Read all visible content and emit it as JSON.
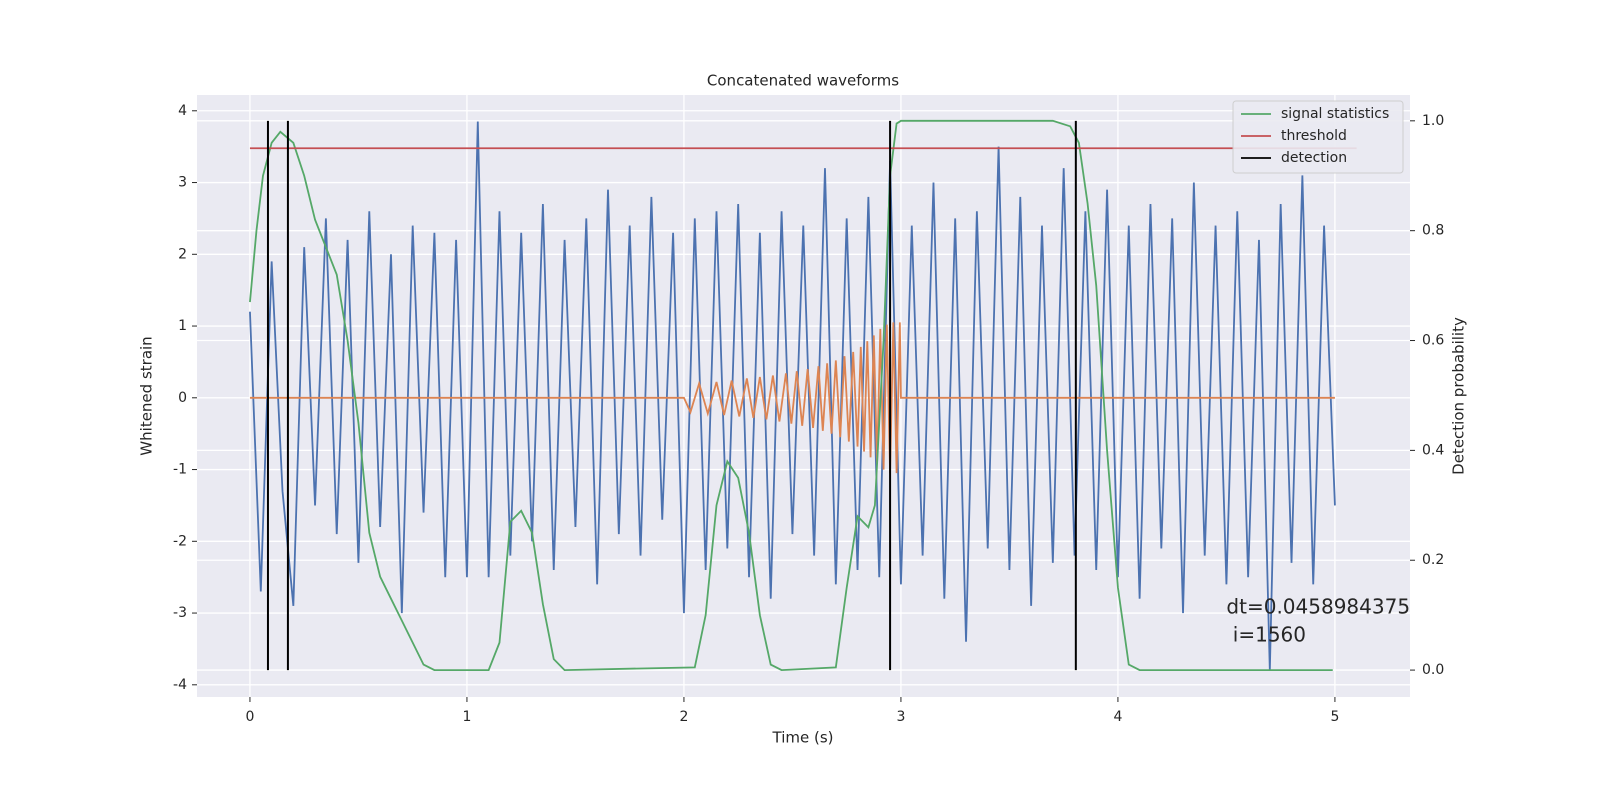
{
  "chart_data": {
    "type": "line",
    "title": "Concatenated waveforms",
    "xlabel": "Time (s)",
    "ylabel": "Whitened strain",
    "y2label": "Detection probability",
    "annotation": [
      "dt=0.0458984375",
      " i=1560"
    ],
    "xlim": [
      -0.244,
      5.346
    ],
    "ylim": [
      -4.17,
      4.22
    ],
    "y2lim": [
      -0.049,
      1.047
    ],
    "xticks": [
      0,
      1,
      2,
      3,
      4,
      5
    ],
    "yticks": [
      -4,
      -3,
      -2,
      -1,
      0,
      1,
      2,
      3,
      4
    ],
    "y2ticks": [
      {
        "value": 0,
        "label": "0.0"
      },
      0.2,
      0.4,
      0.6,
      0.8,
      {
        "value": 1,
        "label": "1.0"
      }
    ],
    "grid": true,
    "legend": "upper right",
    "series": [
      {
        "color": "#4c72b0",
        "axis": "y",
        "x": [
          0,
          0.05,
          0.1,
          0.15,
          0.2,
          0.25,
          0.3,
          0.35,
          0.4,
          0.45,
          0.5,
          0.55,
          0.6,
          0.65,
          0.7,
          0.75,
          0.8,
          0.85,
          0.9,
          0.95,
          1.0,
          1.05,
          1.1,
          1.15,
          1.2,
          1.25,
          1.3,
          1.35,
          1.4,
          1.45,
          1.5,
          1.55,
          1.6,
          1.65,
          1.7,
          1.75,
          1.8,
          1.85,
          1.9,
          1.95,
          2.0,
          2.05,
          2.1,
          2.15,
          2.2,
          2.25,
          2.3,
          2.35,
          2.4,
          2.45,
          2.5,
          2.55,
          2.6,
          2.65,
          2.7,
          2.75,
          2.8,
          2.85,
          2.9,
          2.95,
          3.0,
          3.05,
          3.1,
          3.15,
          3.2,
          3.25,
          3.3,
          3.35,
          3.4,
          3.45,
          3.5,
          3.55,
          3.6,
          3.65,
          3.7,
          3.75,
          3.8,
          3.85,
          3.9,
          3.95,
          4.0,
          4.05,
          4.1,
          4.15,
          4.2,
          4.25,
          4.3,
          4.35,
          4.4,
          4.45,
          4.5,
          4.55,
          4.6,
          4.65,
          4.7,
          4.75,
          4.8,
          4.85,
          4.9,
          4.95,
          5.0
        ],
        "values": [
          1.2,
          -2.7,
          1.9,
          -1.3,
          -2.9,
          2.1,
          -1.5,
          2.5,
          -1.9,
          2.2,
          -2.3,
          2.6,
          -1.8,
          2.0,
          -3.0,
          2.4,
          -1.6,
          2.3,
          -2.5,
          2.2,
          -2.5,
          3.85,
          -2.5,
          2.6,
          -2.2,
          2.3,
          -2.0,
          2.7,
          -2.4,
          2.2,
          -1.8,
          2.5,
          -2.6,
          2.9,
          -1.9,
          2.4,
          -2.2,
          2.8,
          -1.7,
          2.3,
          -3.0,
          2.5,
          -2.4,
          2.6,
          -2.1,
          2.7,
          -2.5,
          2.3,
          -2.8,
          2.6,
          -1.9,
          2.4,
          -2.2,
          3.2,
          -2.6,
          2.5,
          -2.4,
          2.8,
          -2.5,
          3.3,
          -2.6,
          2.4,
          -2.2,
          3.0,
          -2.8,
          2.5,
          -3.4,
          2.6,
          -2.1,
          3.5,
          -2.4,
          2.8,
          -2.9,
          2.4,
          -2.3,
          3.2,
          -2.2,
          2.6,
          -2.4,
          2.9,
          -2.5,
          2.4,
          -2.8,
          2.7,
          -2.1,
          2.5,
          -3.0,
          3.0,
          -2.2,
          2.4,
          -2.6,
          2.6,
          -2.5,
          2.2,
          -3.8,
          2.7,
          -2.3,
          3.1,
          -2.6,
          2.4,
          -1.5
        ]
      },
      {
        "color": "#dd8452",
        "axis": "y",
        "x": [
          0,
          2.0,
          2.03,
          2.07,
          2.11,
          2.15,
          2.185,
          2.22,
          2.255,
          2.29,
          2.32,
          2.35,
          2.38,
          2.41,
          2.44,
          2.47,
          2.495,
          2.52,
          2.545,
          2.57,
          2.595,
          2.62,
          2.64,
          2.66,
          2.68,
          2.7,
          2.72,
          2.74,
          2.76,
          2.78,
          2.8,
          2.815,
          2.83,
          2.845,
          2.86,
          2.875,
          2.89,
          2.905,
          2.92,
          2.935,
          2.95,
          2.965,
          2.98,
          2.995,
          3.0,
          5.0
        ],
        "values": [
          0,
          0,
          -0.2,
          0.2,
          -0.22,
          0.22,
          -0.24,
          0.24,
          -0.26,
          0.27,
          -0.28,
          0.29,
          -0.3,
          0.31,
          -0.33,
          0.34,
          -0.36,
          0.37,
          -0.39,
          0.4,
          -0.42,
          0.44,
          -0.46,
          0.48,
          -0.5,
          0.52,
          -0.55,
          0.58,
          -0.61,
          0.64,
          -0.68,
          0.71,
          -0.75,
          0.79,
          -0.83,
          0.87,
          -0.92,
          0.96,
          -1.0,
          1.02,
          -1.05,
          1.05,
          -1.05,
          1.05,
          0,
          0
        ]
      },
      {
        "name": "signal statistics",
        "color": "#55a868",
        "axis": "y2",
        "x": [
          0,
          0.03,
          0.06,
          0.1,
          0.14,
          0.2,
          0.25,
          0.3,
          0.35,
          0.4,
          0.45,
          0.5,
          0.55,
          0.6,
          0.65,
          0.7,
          0.75,
          0.8,
          0.85,
          1.1,
          1.15,
          1.2,
          1.25,
          1.3,
          1.35,
          1.4,
          1.45,
          2.05,
          2.1,
          2.15,
          2.2,
          2.25,
          2.3,
          2.35,
          2.4,
          2.45,
          2.7,
          2.75,
          2.8,
          2.85,
          2.88,
          2.92,
          2.95,
          2.98,
          3.0,
          3.7,
          3.78,
          3.82,
          3.86,
          3.9,
          3.95,
          4.0,
          4.05,
          4.1,
          4.99
        ],
        "values": [
          0.67,
          0.8,
          0.9,
          0.96,
          0.98,
          0.96,
          0.9,
          0.82,
          0.77,
          0.72,
          0.6,
          0.45,
          0.25,
          0.17,
          0.13,
          0.09,
          0.05,
          0.01,
          0,
          0,
          0.05,
          0.27,
          0.29,
          0.25,
          0.12,
          0.02,
          0,
          0.005,
          0.1,
          0.3,
          0.38,
          0.35,
          0.25,
          0.1,
          0.01,
          0,
          0.005,
          0.15,
          0.28,
          0.26,
          0.3,
          0.6,
          0.9,
          0.995,
          1.0,
          1.0,
          0.99,
          0.96,
          0.85,
          0.7,
          0.4,
          0.15,
          0.01,
          0,
          0
        ]
      },
      {
        "name": "threshold",
        "color": "#c44e52",
        "axis": "y2",
        "x": [
          0,
          5.1
        ],
        "values": [
          0.95,
          0.95
        ]
      },
      {
        "name": "detection",
        "color": "#000000",
        "axis": "y2",
        "vlines": true,
        "x": [
          0.083,
          0.175,
          2.95,
          3.806
        ],
        "ymin": 0,
        "ymax": 1
      }
    ]
  }
}
